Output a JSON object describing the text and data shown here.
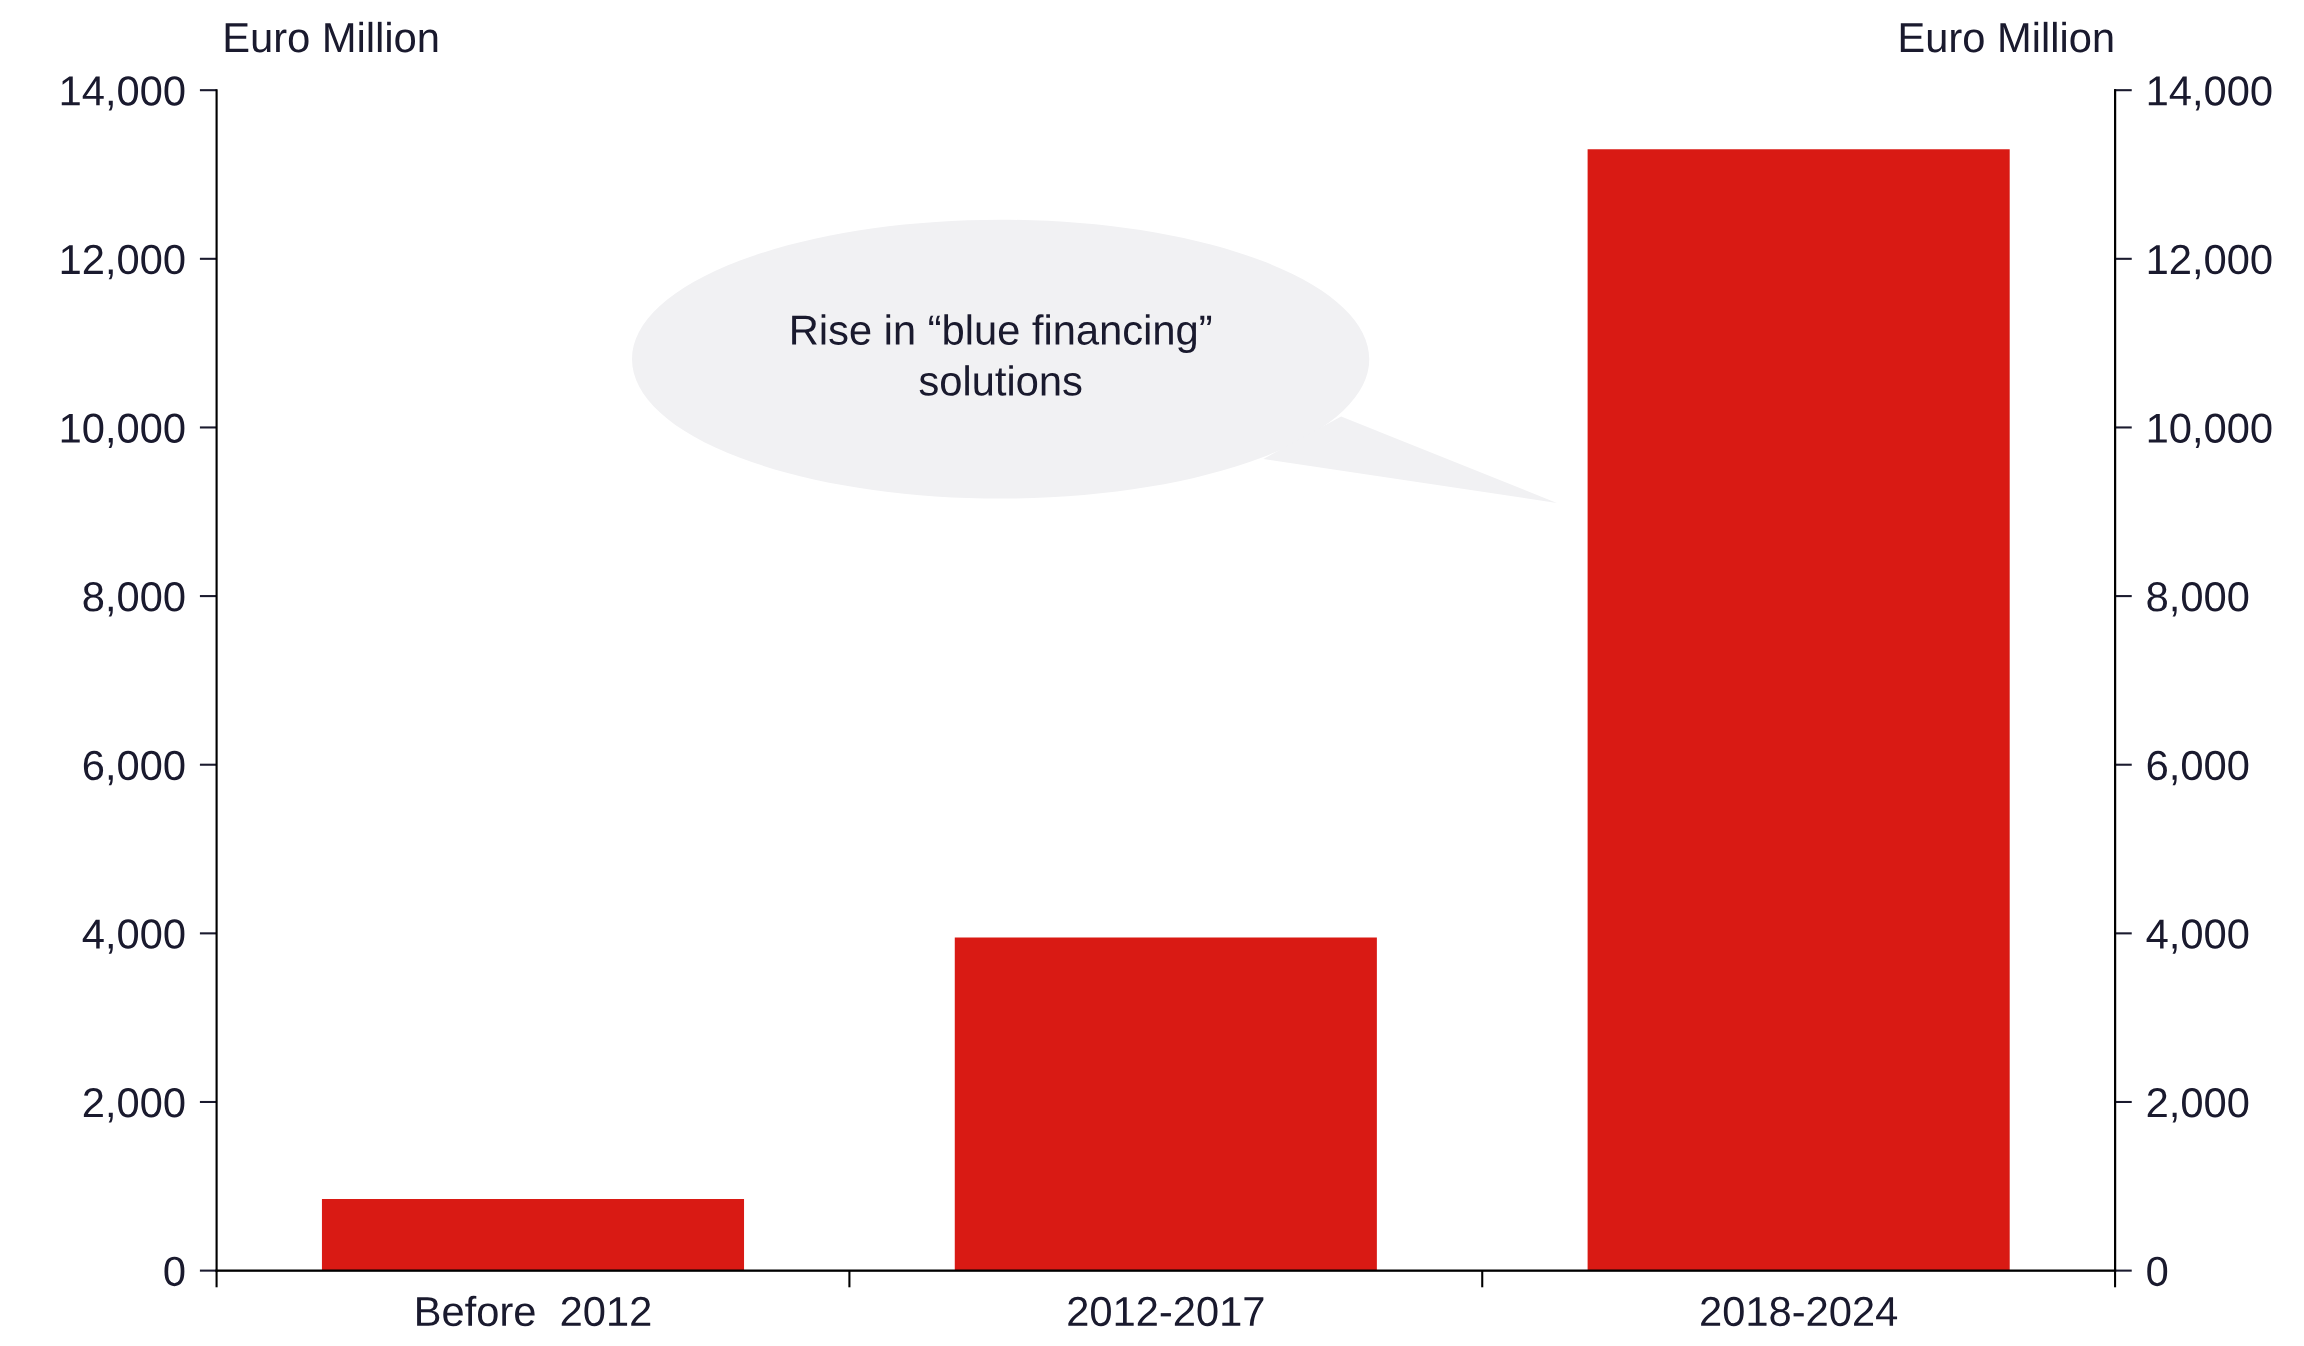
{
  "chart_data": {
    "type": "bar",
    "categories": [
      "Before  2012",
      "2012-2017",
      "2018-2024"
    ],
    "values": [
      850,
      3950,
      13300
    ],
    "color": "#d91a14",
    "ylabel": "Euro Million",
    "y2label": "Euro Million",
    "ylim": [
      0,
      14000
    ],
    "yticks": [
      {
        "value": 0,
        "label": "0"
      },
      {
        "value": 2000,
        "label": "2,000"
      },
      {
        "value": 4000,
        "label": "4,000"
      },
      {
        "value": 6000,
        "label": "6,000"
      },
      {
        "value": 8000,
        "label": "8,000"
      },
      {
        "value": 10000,
        "label": "10,000"
      },
      {
        "value": 12000,
        "label": "12,000"
      },
      {
        "value": 14000,
        "label": "14,000"
      }
    ],
    "y2lim": [
      0,
      14000
    ],
    "y2ticks": [
      {
        "value": 0,
        "label": "0"
      },
      {
        "value": 2000,
        "label": "2,000"
      },
      {
        "value": 4000,
        "label": "4,000"
      },
      {
        "value": 6000,
        "label": "6,000"
      },
      {
        "value": 8000,
        "label": "8,000"
      },
      {
        "value": 10000,
        "label": "10,000"
      },
      {
        "value": 12000,
        "label": "12,000"
      },
      {
        "value": 14000,
        "label": "14,000"
      }
    ],
    "annotations": [
      "Rise in “blue financing”\nsolutions"
    ],
    "grid": false,
    "legend": false
  }
}
